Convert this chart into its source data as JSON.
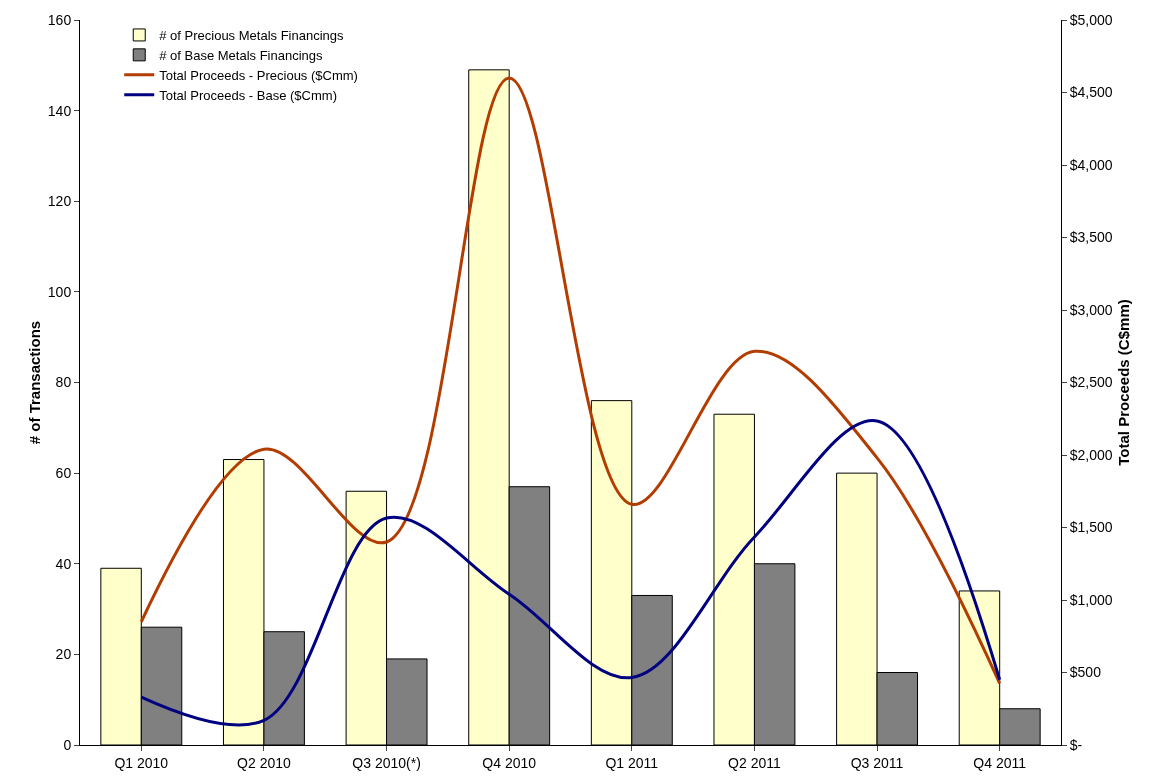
{
  "chart_data": {
    "type": "bar",
    "categories": [
      "Q1 2010",
      "Q2 2010",
      "Q3 2010(*)",
      "Q4 2010",
      "Q1 2011",
      "Q2 2011",
      "Q3 2011",
      "Q4 2011"
    ],
    "ylabel": "# of Transactions",
    "y2label": "Total Proceeds (C$mm)",
    "series": [
      {
        "name": "# of Precious Metals Financings",
        "color": "#ffffcc",
        "values": [
          39,
          63,
          56,
          149,
          76,
          73,
          60,
          34
        ]
      },
      {
        "name": "# of Base Metals Financings",
        "color": "#808080",
        "values": [
          26,
          25,
          19,
          57,
          33,
          40,
          16,
          8
        ]
      },
      {
        "name": "Total Proceeds - Precious ($Cmm)",
        "type": "line",
        "axis": "y2",
        "color": "#b33c00",
        "values": [
          850,
          2040,
          1400,
          4600,
          1660,
          2715,
          1980,
          425
        ]
      },
      {
        "name": "Total Proceeds - Base ($Cmm)",
        "type": "line",
        "axis": "y2",
        "color": "#000080",
        "values": [
          330,
          170,
          1565,
          1040,
          465,
          1435,
          2235,
          450
        ]
      }
    ],
    "ylim": [
      0,
      160
    ],
    "yticks": [
      0,
      20,
      40,
      60,
      80,
      100,
      120,
      140,
      160
    ],
    "y2lim": [
      0,
      5000
    ],
    "y2ticks": [
      {
        "value": 0,
        "label": "$-"
      },
      {
        "value": 500,
        "label": "$500"
      },
      {
        "value": 1000,
        "label": "$1,000"
      },
      {
        "value": 1500,
        "label": "$1,500"
      },
      {
        "value": 2000,
        "label": "$2,000"
      },
      {
        "value": 2500,
        "label": "$2,500"
      },
      {
        "value": 3000,
        "label": "$3,000"
      },
      {
        "value": 3500,
        "label": "$3,500"
      },
      {
        "value": 4000,
        "label": "$4,000"
      },
      {
        "value": 4500,
        "label": "$4,500"
      },
      {
        "value": 5000,
        "label": "$5,000"
      }
    ],
    "grid": false,
    "legend": "top left",
    "marker": "none",
    "line_style": "solid"
  }
}
